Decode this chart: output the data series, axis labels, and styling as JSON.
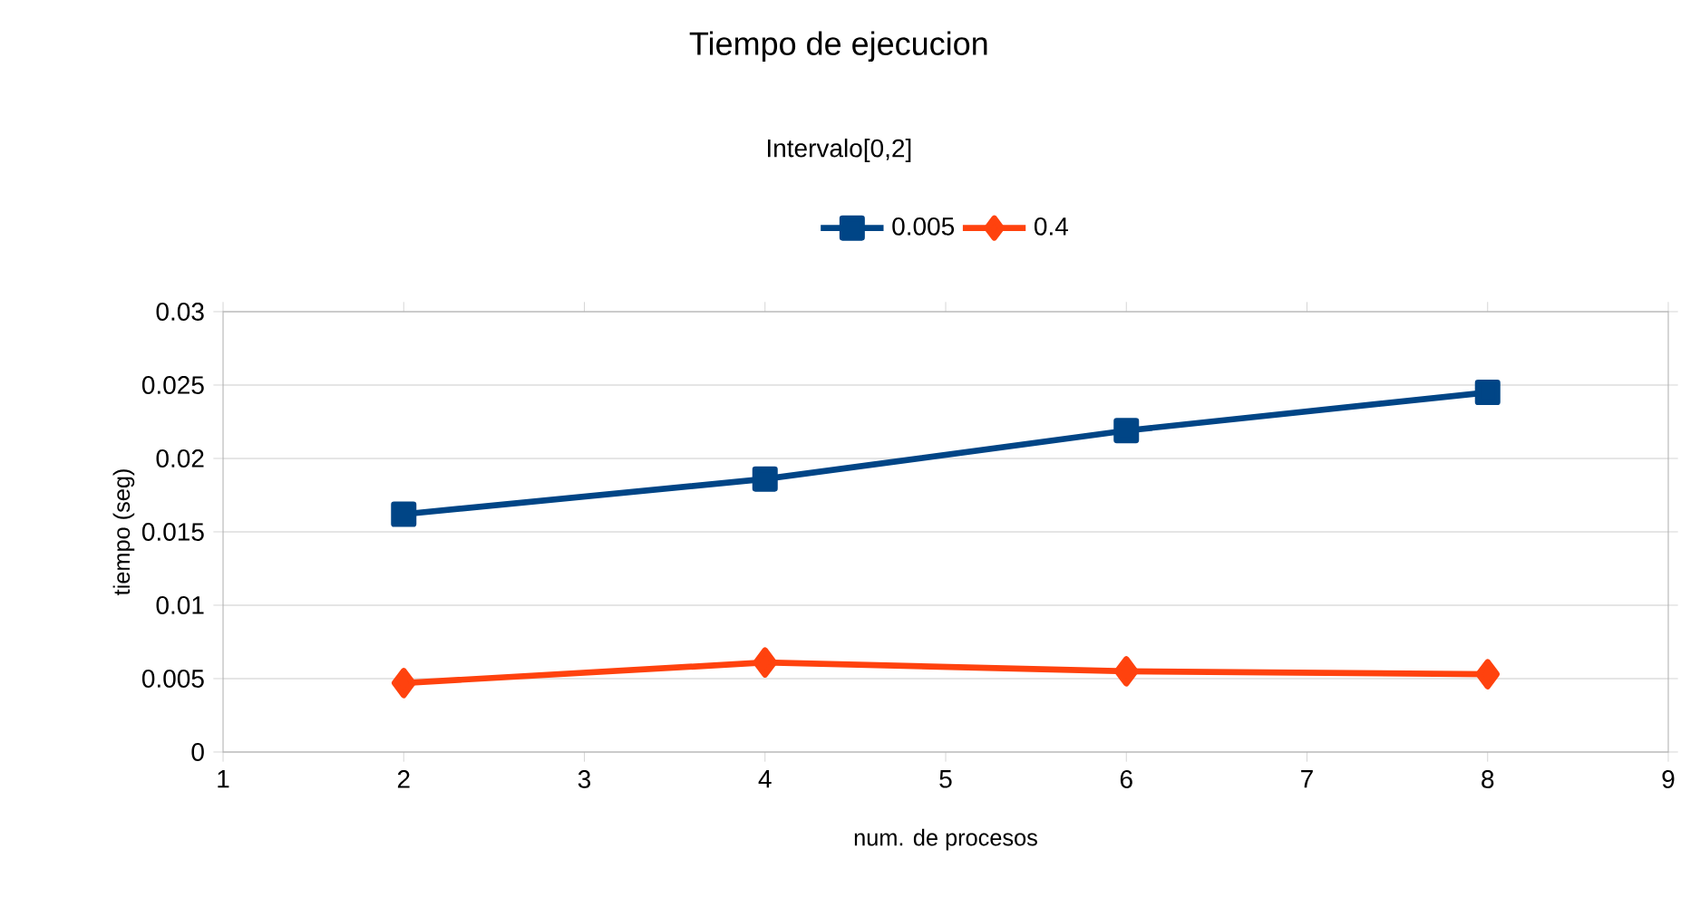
{
  "chart_data": {
    "type": "line",
    "title": "Tiempo de ejecucion",
    "subtitle": "Intervalo[0,2]",
    "xlabel": "num. de procesos",
    "ylabel": "tiempo (seg)",
    "x": [
      2,
      4,
      6,
      8
    ],
    "series": [
      {
        "name": "0.005",
        "color": "#004586",
        "marker": "square",
        "values": [
          0.0162,
          0.0186,
          0.0219,
          0.0245
        ]
      },
      {
        "name": "0.4",
        "color": "#ff420e",
        "marker": "diamond",
        "values": [
          0.0047,
          0.0061,
          0.0055,
          0.0053
        ]
      }
    ],
    "xlim": [
      1,
      9
    ],
    "xticks": [
      1,
      2,
      3,
      4,
      5,
      6,
      7,
      8,
      9
    ],
    "ylim": [
      0,
      0.03
    ],
    "yticks": [
      0,
      0.005,
      0.01,
      0.015,
      0.02,
      0.025,
      0.03
    ],
    "grid": "y",
    "legend": "top"
  }
}
